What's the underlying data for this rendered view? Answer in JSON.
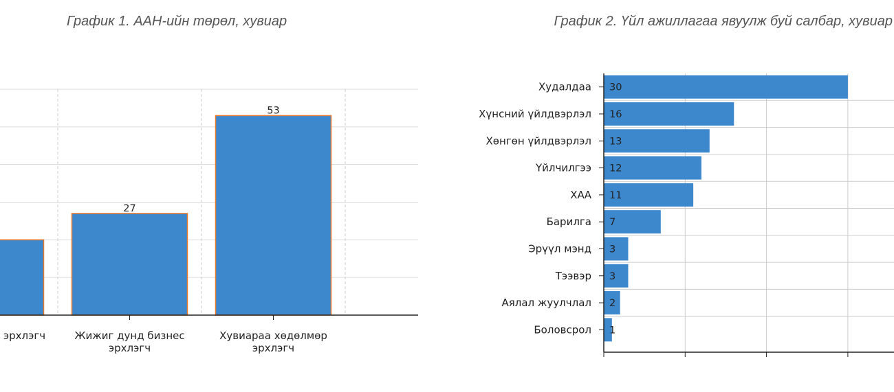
{
  "chart_data": [
    {
      "type": "bar",
      "title": "График 1. ААН-ийн төрөл, хувиар",
      "categories": [
        [
          "Бичил бизнес эрхлэгч"
        ],
        [
          "Жижиг дунд бизнес",
          "эрхлэгч"
        ],
        [
          "Хувиараа хөдөлмөр",
          "эрхлэгч"
        ]
      ],
      "values": [
        20,
        27,
        53
      ],
      "ylim": [
        0,
        60
      ],
      "grid": true,
      "colors": {
        "bar": "#3d87cd",
        "bar_edge": "#e8782a"
      }
    },
    {
      "type": "bar",
      "orientation": "horizontal",
      "title": "График 2. Үйл ажиллагаа явуулж буй салбар, хувиар",
      "categories": [
        "Худалдаа",
        "Хүнсний үйлдвэрлэл",
        "Хөнгөн үйлдвэрлэл",
        "Үйлчилгээ",
        "ХАА",
        "Барилга",
        "Эрүүл мэнд",
        "Тээвэр",
        "Аялал жуулчлал",
        "Боловсрол"
      ],
      "values": [
        30,
        16,
        13,
        12,
        11,
        7,
        3,
        3,
        2,
        1
      ],
      "xlim": [
        0,
        40
      ],
      "grid": true,
      "colors": {
        "bar": "#3d87cd"
      }
    }
  ]
}
